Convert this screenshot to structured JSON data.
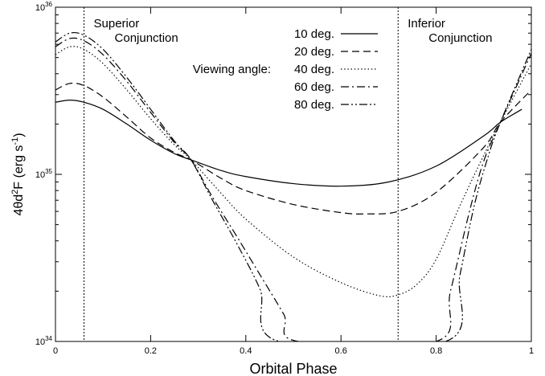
{
  "chart_data": {
    "type": "line",
    "xlabel": "Orbital Phase",
    "ylabel_parts": [
      "4θd",
      "2",
      "F (erg s",
      "-1",
      ")"
    ],
    "xlim": [
      0,
      1
    ],
    "ylim": [
      1e+34,
      1e+36
    ],
    "yscale": "log",
    "x_ticks": [
      {
        "value": 0,
        "label": "0"
      },
      {
        "value": 0.2,
        "label": "0.2"
      },
      {
        "value": 0.4,
        "label": "0.4"
      },
      {
        "value": 0.6,
        "label": "0.6"
      },
      {
        "value": 0.8,
        "label": "0.8"
      },
      {
        "value": 1,
        "label": "1"
      }
    ],
    "y_ticks": [
      {
        "value": 1e+34,
        "base": "10",
        "exp": "34"
      },
      {
        "value": 1e+35,
        "base": "10",
        "exp": "35"
      },
      {
        "value": 1e+36,
        "base": "10",
        "exp": "36"
      }
    ],
    "conjunctions": [
      {
        "x": 0.06,
        "line1": "Superior",
        "line2": "Conjunction"
      },
      {
        "x": 0.72,
        "line1": "Inferior",
        "line2": "Conjunction"
      }
    ],
    "legend_title": "Viewing angle:",
    "series": [
      {
        "name": "10 deg.",
        "dash": "solid",
        "x": [
          0.0,
          0.03,
          0.06,
          0.1,
          0.15,
          0.2,
          0.25,
          0.285,
          0.35,
          0.4,
          0.5,
          0.6,
          0.7,
          0.8,
          0.9,
          0.935,
          0.98
        ],
        "y": [
          2.7e+35,
          2.78e+35,
          2.7e+35,
          2.45e+35,
          2e+35,
          1.6e+35,
          1.33e+35,
          1.22e+35,
          1.05e+35,
          9.7e+34,
          8.8e+34,
          8.5e+34,
          9e+34,
          1.12e+35,
          1.7e+35,
          2.05e+35,
          2.45e+35
        ]
      },
      {
        "name": "20 deg.",
        "dash": "dashed",
        "x": [
          0.0,
          0.03,
          0.06,
          0.1,
          0.15,
          0.2,
          0.25,
          0.285,
          0.35,
          0.4,
          0.5,
          0.6,
          0.65,
          0.72,
          0.8,
          0.9,
          0.935,
          1.0
        ],
        "y": [
          3.2e+35,
          3.5e+35,
          3.4e+35,
          2.9e+35,
          2.2e+35,
          1.65e+35,
          1.35e+35,
          1.22e+35,
          9.4e+34,
          8e+34,
          6.6e+34,
          5.9e+34,
          5.8e+34,
          6e+34,
          7.8e+34,
          1.45e+35,
          2.05e+35,
          3.2e+35
        ]
      },
      {
        "name": "40 deg.",
        "dash": "dotted",
        "x": [
          0.0,
          0.03,
          0.06,
          0.1,
          0.15,
          0.2,
          0.25,
          0.285,
          0.35,
          0.4,
          0.5,
          0.6,
          0.68,
          0.72,
          0.76,
          0.8,
          0.85,
          0.9,
          0.935,
          1.0
        ],
        "y": [
          5.2e+35,
          5.8e+35,
          5.6e+35,
          4.6e+35,
          3.2e+35,
          2.15e+35,
          1.5e+35,
          1.22e+35,
          7.6e+34,
          5.4e+34,
          3.2e+34,
          2.25e+34,
          1.88e+34,
          1.9e+34,
          2.2e+34,
          3.1e+34,
          6.5e+34,
          1.3e+35,
          2.05e+35,
          4.6e+35
        ]
      },
      {
        "name": "60 deg.",
        "dash": "dashdot",
        "x": [
          0.0,
          0.03,
          0.06,
          0.1,
          0.15,
          0.2,
          0.25,
          0.285,
          0.33,
          0.38,
          0.43,
          0.48,
          0.51,
          0.8,
          0.83,
          0.87,
          0.9,
          0.935,
          1.0
        ],
        "y": [
          5.8e+35,
          6.5e+35,
          6.3e+35,
          5.2e+35,
          3.6e+35,
          2.35e+35,
          1.55e+35,
          1.22e+35,
          7.3e+34,
          4.3e+34,
          2.5e+34,
          1.45e+34,
          1e+34,
          1e+34,
          2e+34,
          6e+34,
          1.2e+35,
          2.05e+35,
          5.3e+35
        ]
      },
      {
        "name": "80 deg.",
        "dash": "dashdotdot",
        "x": [
          0.0,
          0.03,
          0.06,
          0.1,
          0.15,
          0.2,
          0.25,
          0.285,
          0.33,
          0.38,
          0.43,
          0.47,
          0.82,
          0.85,
          0.88,
          0.91,
          0.935,
          1.0
        ],
        "y": [
          6.2e+35,
          7e+35,
          6.8e+35,
          5.6e+35,
          3.8e+35,
          2.45e+35,
          1.58e+35,
          1.22e+35,
          7e+34,
          3.9e+34,
          2.05e+34,
          1e+34,
          1e+34,
          2.5e+34,
          6.5e+34,
          1.3e+35,
          2.05e+35,
          5.6e+35
        ]
      }
    ]
  }
}
